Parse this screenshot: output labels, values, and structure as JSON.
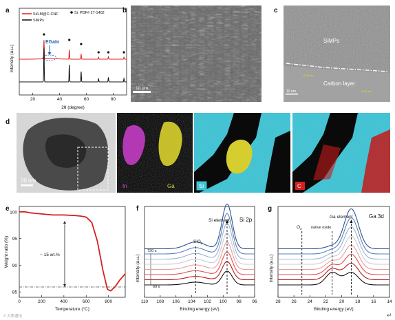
{
  "panels": {
    "a": {
      "label": "a",
      "legend": [
        "Si/LM@C-CNF",
        "SiMPs"
      ],
      "pdf_label": "Si: PDF# 27-1402",
      "annotation": "EGaIn",
      "xlabel": "2θ (degree)",
      "ylabel": "Intensity (a.u.)",
      "xticks": [
        "20",
        "40",
        "60",
        "80"
      ]
    },
    "b": {
      "label": "b",
      "scale": "10 μm"
    },
    "c": {
      "label": "c",
      "region1": "SiMPs",
      "region2": "Carbon layer",
      "lattice1": "0.36 nm",
      "lattice2": "0.34 nm",
      "scale": "10 nm"
    },
    "d": {
      "label": "d",
      "scale": "20 nm",
      "maps": [
        "In",
        "Ga",
        "Si",
        "C"
      ]
    },
    "e": {
      "label": "e",
      "xlabel": "Temperature (°C)",
      "ylabel": "Weight ratio (%)",
      "annotation": "~ 15 wt.%",
      "xticks": [
        "0",
        "200",
        "400",
        "600",
        "800"
      ],
      "yticks": [
        "100",
        "95",
        "90",
        "85"
      ]
    },
    "f": {
      "label": "f",
      "title": "Si 2p",
      "element_label": "Si element",
      "oxide_label": "SiO",
      "oxide_sub": "2",
      "time_top": "720 s",
      "time_bottom": "60 s",
      "xlabel": "Binding energy (eV)",
      "ylabel": "Intensity (a.u.)",
      "xticks": [
        "110",
        "108",
        "106",
        "104",
        "102",
        "100",
        "98",
        "96"
      ]
    },
    "g": {
      "label": "g",
      "title": "Ga 3d",
      "element_label": "Ga element",
      "o2_label": "O",
      "o2_sub": "2",
      "oxide_label": "native oxide",
      "xlabel": "Binding energy (eV)",
      "ylabel": "Intensity (a.u.)",
      "xticks": [
        "28",
        "26",
        "24",
        "22",
        "20",
        "18",
        "16",
        "14"
      ]
    }
  },
  "chart_data": [
    {
      "type": "line",
      "panel": "a",
      "xlabel": "2θ (degree)",
      "ylabel": "Intensity (a.u.)",
      "xlim": [
        10,
        90
      ],
      "series": [
        {
          "name": "Si/LM@C-CNF",
          "color": "#e02020",
          "peaks": [
            28.4,
            47.3,
            56.1,
            69.1,
            76.4,
            88.0
          ],
          "heights": [
            0.9,
            0.45,
            0.25,
            0.1,
            0.12,
            0.1
          ]
        },
        {
          "name": "SiMPs",
          "color": "#111111",
          "peaks": [
            28.4,
            47.3,
            56.1,
            69.1,
            76.4,
            88.0
          ],
          "heights": [
            1.0,
            0.5,
            0.3,
            0.1,
            0.13,
            0.1
          ]
        }
      ],
      "markers_2theta": [
        28.4,
        47.3,
        56.1,
        69.1,
        76.4,
        88.0
      ]
    },
    {
      "type": "line",
      "panel": "e",
      "xlabel": "Temperature (°C)",
      "ylabel": "Weight ratio (%)",
      "xlim": [
        0,
        950
      ],
      "ylim": [
        84,
        101
      ],
      "x": [
        0,
        50,
        100,
        200,
        300,
        400,
        500,
        550,
        600,
        650,
        700,
        750,
        790,
        820,
        860,
        900,
        950
      ],
      "y": [
        100,
        100,
        99.8,
        99.6,
        99.4,
        99.4,
        99.3,
        99.2,
        99.0,
        98.0,
        94.5,
        89.0,
        85.5,
        85.2,
        86.0,
        87.2,
        88.4
      ],
      "reference_y": 85
    },
    {
      "type": "line",
      "panel": "f",
      "xlim": [
        110,
        96
      ],
      "peak_si": 99.5,
      "peak_sio2": 103.5,
      "n_series": 8,
      "colors": [
        "#111111",
        "#b91818",
        "#e15050",
        "#ef9a9a",
        "#c7ccd6",
        "#9bb0d0",
        "#5d7fb8",
        "#2f4e8c"
      ]
    },
    {
      "type": "line",
      "panel": "g",
      "xlim": [
        28,
        14
      ],
      "peak_ga": 18.8,
      "peak_oxide": 21.2,
      "peak_o2": 25.0,
      "n_series": 8,
      "colors": [
        "#111111",
        "#b91818",
        "#e15050",
        "#ef9a9a",
        "#c7ccd6",
        "#9bb0d0",
        "#5d7fb8",
        "#2f4e8c"
      ]
    }
  ]
}
